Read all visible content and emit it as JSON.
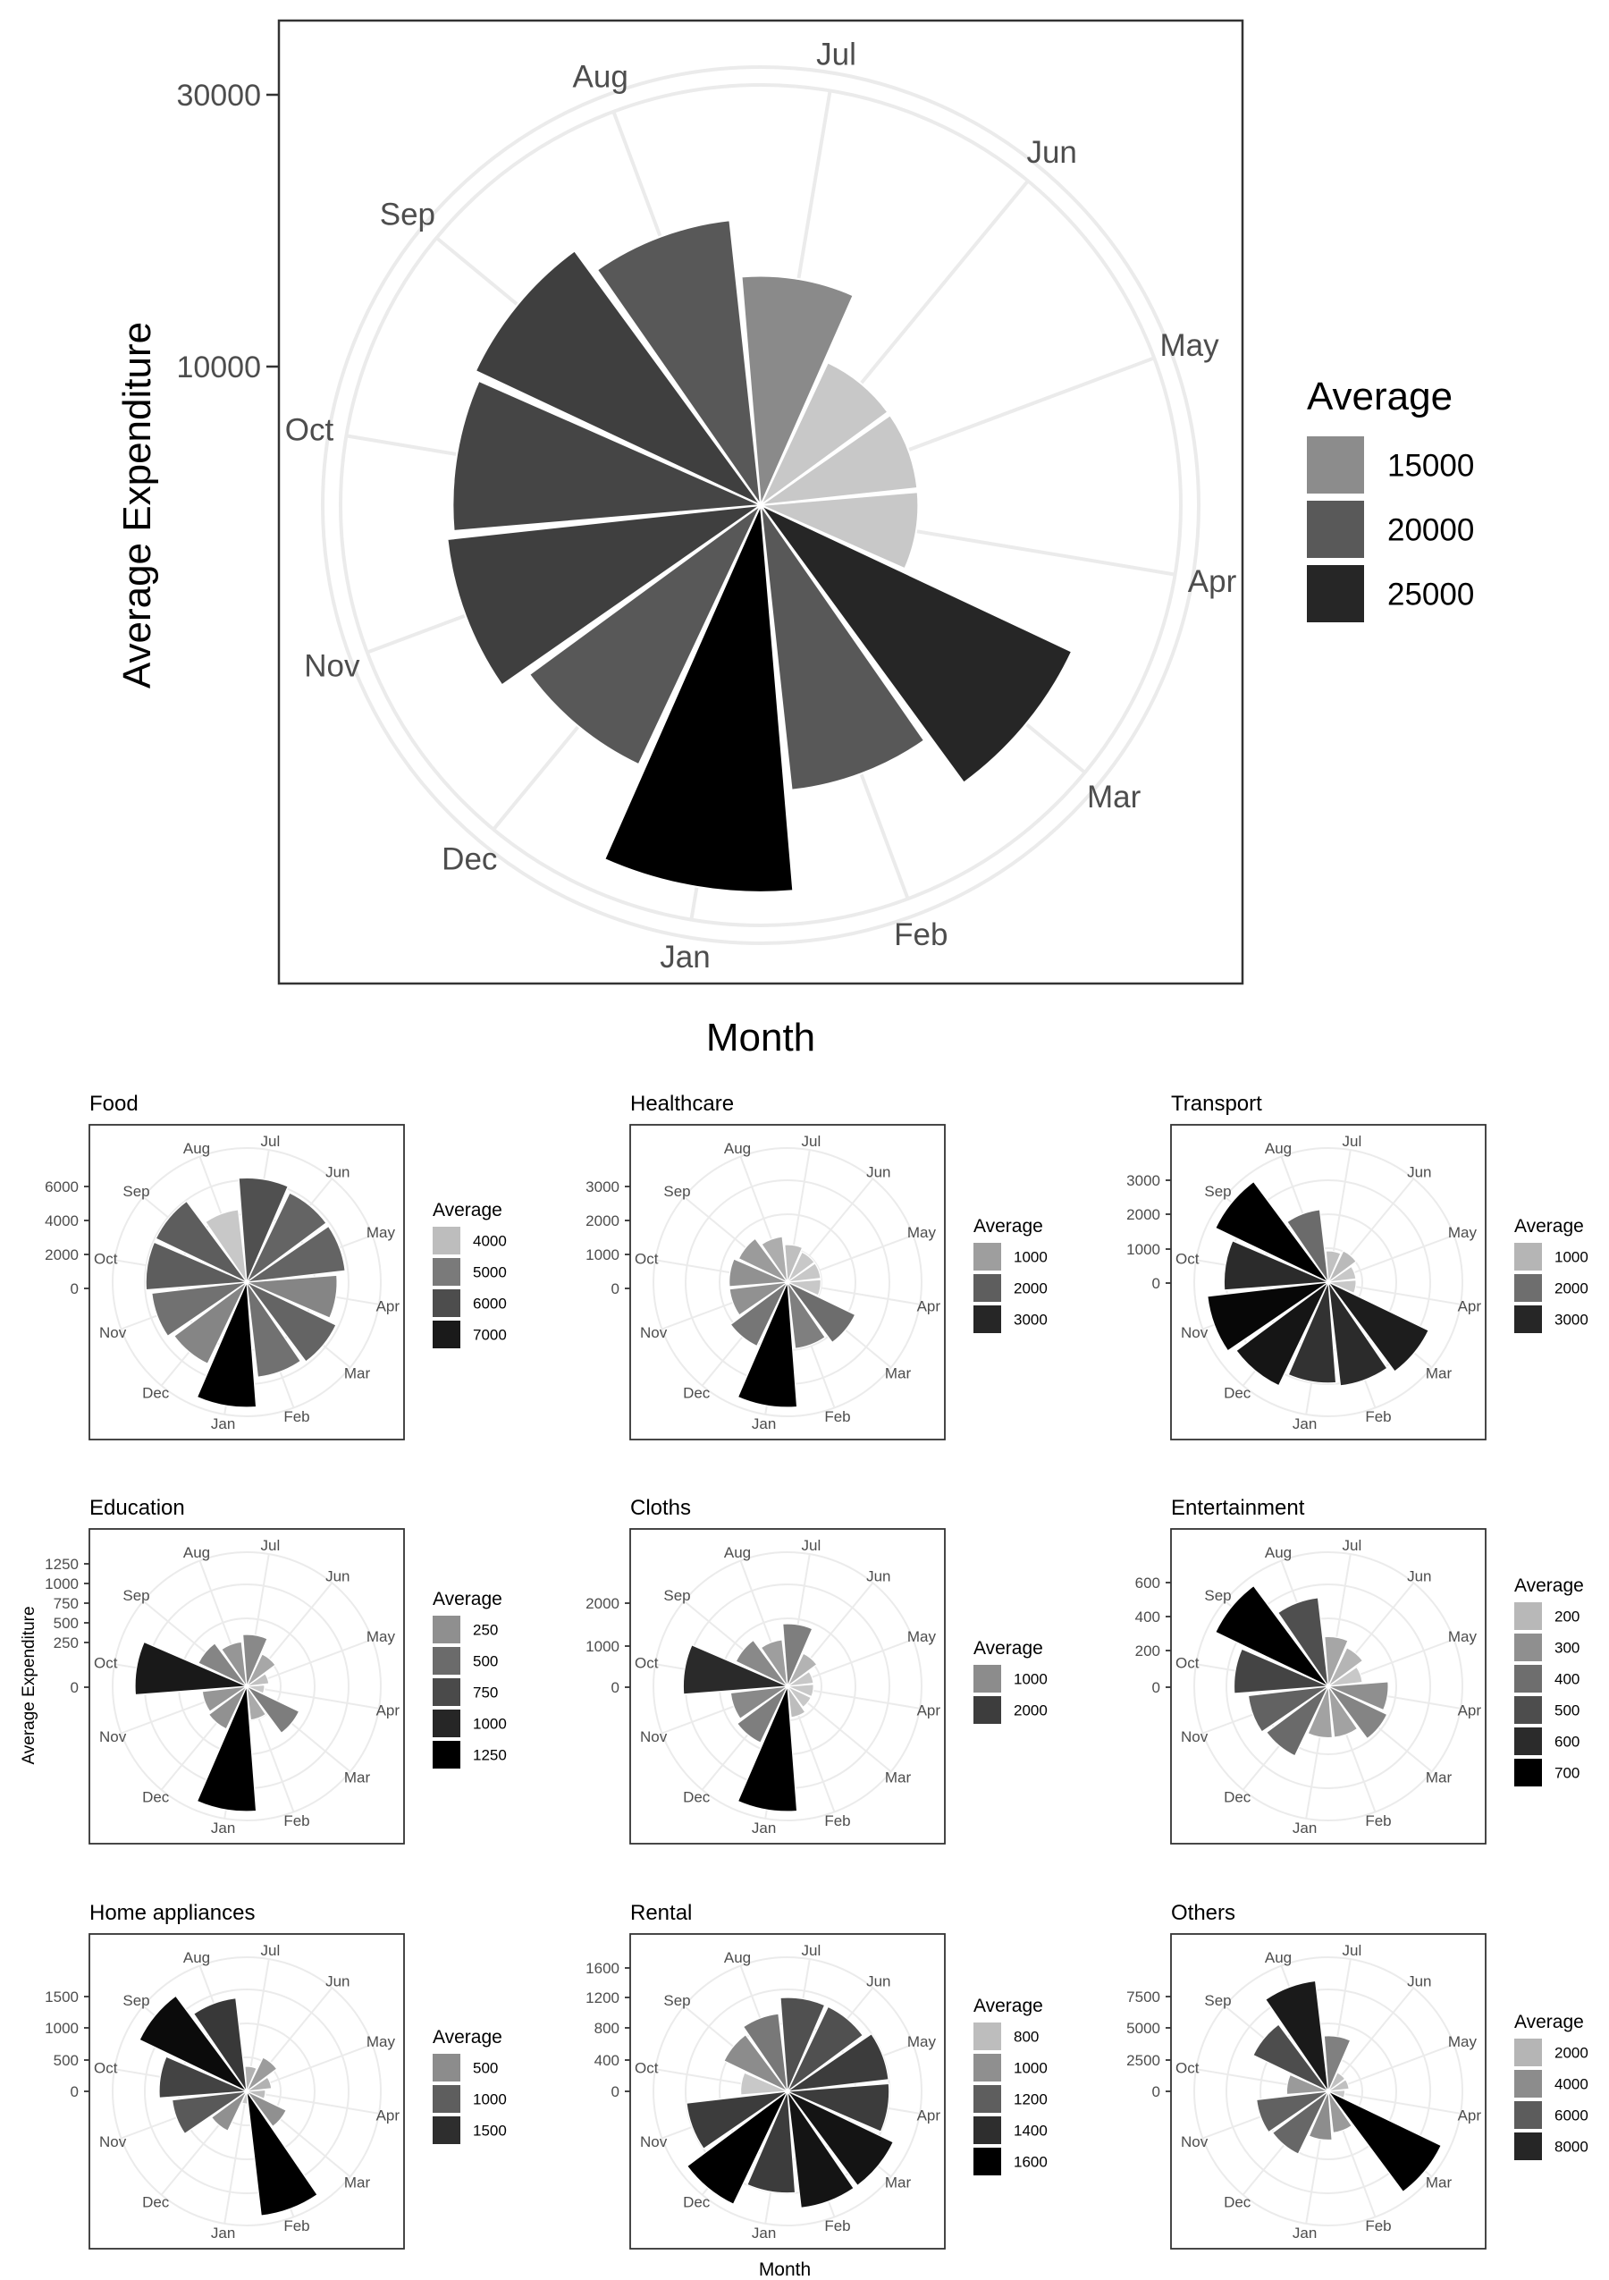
{
  "main": {
    "xlabel": "Month",
    "ylabel": "Average Expenditure",
    "legend_title": "Average",
    "legend_items": [
      {
        "label": "15000",
        "color": "#8c8c8c"
      },
      {
        "label": "20000",
        "color": "#595959"
      },
      {
        "label": "25000",
        "color": "#262626"
      }
    ],
    "y_ticks": [
      "30000",
      "10000"
    ]
  },
  "small": {
    "xlabel": "Month",
    "ylabel": "Average Expenditure"
  },
  "panels": [
    {
      "title": "Food",
      "legend_title": "Average",
      "y_ticks": [
        "6000",
        "4000",
        "2000",
        "0"
      ],
      "legend_items": [
        {
          "label": "4000",
          "color": "#bdbdbd"
        },
        {
          "label": "5000",
          "color": "#7a7a7a"
        },
        {
          "label": "6000",
          "color": "#4d4d4d"
        },
        {
          "label": "7000",
          "color": "#1a1a1a"
        }
      ]
    },
    {
      "title": "Healthcare",
      "legend_title": "Average",
      "y_ticks": [
        "3000",
        "2000",
        "1000",
        "0"
      ],
      "legend_items": [
        {
          "label": "1000",
          "color": "#9e9e9e"
        },
        {
          "label": "2000",
          "color": "#5e5e5e"
        },
        {
          "label": "3000",
          "color": "#262626"
        }
      ]
    },
    {
      "title": "Transport",
      "legend_title": "Average",
      "y_ticks": [
        "3000",
        "2000",
        "1000",
        "0"
      ],
      "legend_items": [
        {
          "label": "1000",
          "color": "#b5b5b5"
        },
        {
          "label": "2000",
          "color": "#6e6e6e"
        },
        {
          "label": "3000",
          "color": "#262626"
        }
      ]
    },
    {
      "title": "Education",
      "legend_title": "Average",
      "y_ticks": [
        "1250",
        "1000",
        "750",
        "500",
        "250",
        "0"
      ],
      "legend_items": [
        {
          "label": "250",
          "color": "#8f8f8f"
        },
        {
          "label": "500",
          "color": "#6b6b6b"
        },
        {
          "label": "750",
          "color": "#4a4a4a"
        },
        {
          "label": "1000",
          "color": "#262626"
        },
        {
          "label": "1250",
          "color": "#000000"
        }
      ]
    },
    {
      "title": "Cloths",
      "legend_title": "Average",
      "y_ticks": [
        "2000",
        "1000",
        "0"
      ],
      "legend_items": [
        {
          "label": "1000",
          "color": "#8c8c8c"
        },
        {
          "label": "2000",
          "color": "#3d3d3d"
        }
      ]
    },
    {
      "title": "Entertainment",
      "legend_title": "Average",
      "y_ticks": [
        "600",
        "400",
        "200",
        "0"
      ],
      "legend_items": [
        {
          "label": "200",
          "color": "#b8b8b8"
        },
        {
          "label": "300",
          "color": "#8f8f8f"
        },
        {
          "label": "400",
          "color": "#6e6e6e"
        },
        {
          "label": "500",
          "color": "#4d4d4d"
        },
        {
          "label": "600",
          "color": "#2b2b2b"
        },
        {
          "label": "700",
          "color": "#000000"
        }
      ]
    },
    {
      "title": "Home appliances",
      "legend_title": "Average",
      "y_ticks": [
        "1500",
        "1000",
        "500",
        "0"
      ],
      "legend_items": [
        {
          "label": "500",
          "color": "#8c8c8c"
        },
        {
          "label": "1000",
          "color": "#5e5e5e"
        },
        {
          "label": "1500",
          "color": "#2e2e2e"
        }
      ]
    },
    {
      "title": "Rental",
      "legend_title": "Average",
      "y_ticks": [
        "1600",
        "1200",
        "800",
        "400",
        "0"
      ],
      "legend_items": [
        {
          "label": "800",
          "color": "#bdbdbd"
        },
        {
          "label": "1000",
          "color": "#8f8f8f"
        },
        {
          "label": "1200",
          "color": "#5e5e5e"
        },
        {
          "label": "1400",
          "color": "#2e2e2e"
        },
        {
          "label": "1600",
          "color": "#000000"
        }
      ]
    },
    {
      "title": "Others",
      "legend_title": "Average",
      "y_ticks": [
        "7500",
        "5000",
        "2500",
        "0"
      ],
      "legend_items": [
        {
          "label": "2000",
          "color": "#b5b5b5"
        },
        {
          "label": "4000",
          "color": "#8c8c8c"
        },
        {
          "label": "6000",
          "color": "#5c5c5c"
        },
        {
          "label": "8000",
          "color": "#262626"
        }
      ]
    }
  ],
  "chart_data": [
    {
      "type": "bar",
      "polar": true,
      "title": "",
      "xlabel": "Month",
      "ylabel": "Average Expenditure",
      "categories": [
        "Jan",
        "Dec",
        "Nov",
        "Oct",
        "Sep",
        "Aug",
        "Jul",
        "Jun",
        "May",
        "Apr",
        "Mar",
        "Feb"
      ],
      "values": [
        27000,
        20000,
        22000,
        21500,
        22000,
        20000,
        16000,
        11000,
        11000,
        11000,
        24000,
        20000
      ],
      "y_ticks": [
        10000,
        30000
      ],
      "legend": "right"
    },
    {
      "type": "bar",
      "polar": true,
      "title": "Food",
      "categories": [
        "Jan",
        "Dec",
        "Nov",
        "Oct",
        "Sep",
        "Aug",
        "Jul",
        "Jun",
        "May",
        "Apr",
        "Mar",
        "Feb"
      ],
      "values": [
        7200,
        5200,
        5500,
        5800,
        5800,
        4200,
        6000,
        5700,
        5700,
        5200,
        5700,
        5500
      ],
      "y_ticks": [
        0,
        2000,
        4000,
        6000
      ]
    },
    {
      "type": "bar",
      "polar": true,
      "title": "Healthcare",
      "categories": [
        "Jan",
        "Dec",
        "Nov",
        "Oct",
        "Sep",
        "Aug",
        "Jul",
        "Jun",
        "May",
        "Apr",
        "Mar",
        "Feb"
      ],
      "values": [
        3000,
        1700,
        1400,
        1400,
        1300,
        1100,
        900,
        800,
        800,
        800,
        1800,
        1600
      ],
      "y_ticks": [
        0,
        1000,
        2000,
        3000
      ]
    },
    {
      "type": "bar",
      "polar": true,
      "title": "Transport",
      "categories": [
        "Jan",
        "Dec",
        "Nov",
        "Oct",
        "Sep",
        "Aug",
        "Jul",
        "Jun",
        "May",
        "Apr",
        "Mar",
        "Feb"
      ],
      "values": [
        2900,
        3300,
        3500,
        3000,
        3600,
        2100,
        900,
        1000,
        800,
        800,
        3200,
        3000
      ],
      "y_ticks": [
        0,
        1000,
        2000,
        3000
      ]
    },
    {
      "type": "bar",
      "polar": true,
      "title": "Education",
      "categories": [
        "Jan",
        "Dec",
        "Nov",
        "Oct",
        "Sep",
        "Aug",
        "Jul",
        "Jun",
        "May",
        "Apr",
        "Mar",
        "Feb"
      ],
      "values": [
        1400,
        530,
        500,
        1250,
        600,
        500,
        580,
        400,
        250,
        200,
        650,
        380
      ],
      "y_ticks": [
        0,
        250,
        500,
        750,
        1000,
        1250
      ]
    },
    {
      "type": "bar",
      "polar": true,
      "title": "Cloths",
      "categories": [
        "Jan",
        "Dec",
        "Nov",
        "Oct",
        "Sep",
        "Aug",
        "Jul",
        "Jun",
        "May",
        "Apr",
        "Mar",
        "Feb"
      ],
      "values": [
        2400,
        1200,
        1100,
        2000,
        1100,
        900,
        1200,
        700,
        500,
        500,
        500,
        600
      ],
      "y_ticks": [
        0,
        1000,
        2000
      ]
    },
    {
      "type": "bar",
      "polar": true,
      "title": "Entertainment",
      "categories": [
        "Jan",
        "Dec",
        "Nov",
        "Oct",
        "Sep",
        "Aug",
        "Jul",
        "Jun",
        "May",
        "Apr",
        "Mar",
        "Feb"
      ],
      "values": [
        300,
        450,
        470,
        550,
        730,
        520,
        290,
        250,
        200,
        350,
        380,
        300
      ],
      "y_ticks": [
        0,
        200,
        400,
        600
      ]
    },
    {
      "type": "bar",
      "polar": true,
      "title": "Home appliances",
      "categories": [
        "Jan",
        "Dec",
        "Nov",
        "Oct",
        "Sep",
        "Aug",
        "Jul",
        "Jun",
        "May",
        "Apr",
        "Mar",
        "Feb"
      ],
      "values": [
        200,
        700,
        1200,
        1400,
        1900,
        1500,
        400,
        600,
        400,
        300,
        700,
        2000
      ],
      "y_ticks": [
        0,
        500,
        1000,
        1500
      ]
    },
    {
      "type": "bar",
      "polar": true,
      "title": "Rental",
      "categories": [
        "Jan",
        "Dec",
        "Nov",
        "Oct",
        "Sep",
        "Aug",
        "Jul",
        "Jun",
        "May",
        "Apr",
        "Mar",
        "Feb"
      ],
      "values": [
        1300,
        1600,
        1300,
        600,
        900,
        1000,
        1200,
        1200,
        1300,
        1300,
        1500,
        1500
      ],
      "y_ticks": [
        0,
        400,
        800,
        1200,
        1600
      ]
    },
    {
      "type": "bar",
      "polar": true,
      "title": "Others",
      "categories": [
        "Jan",
        "Dec",
        "Nov",
        "Oct",
        "Sep",
        "Aug",
        "Jul",
        "Jun",
        "May",
        "Apr",
        "Mar",
        "Feb"
      ],
      "values": [
        3500,
        5000,
        5200,
        3000,
        6000,
        8000,
        4000,
        1500,
        1500,
        1200,
        9000,
        3000
      ],
      "y_ticks": [
        0,
        2500,
        5000,
        7500
      ]
    }
  ]
}
